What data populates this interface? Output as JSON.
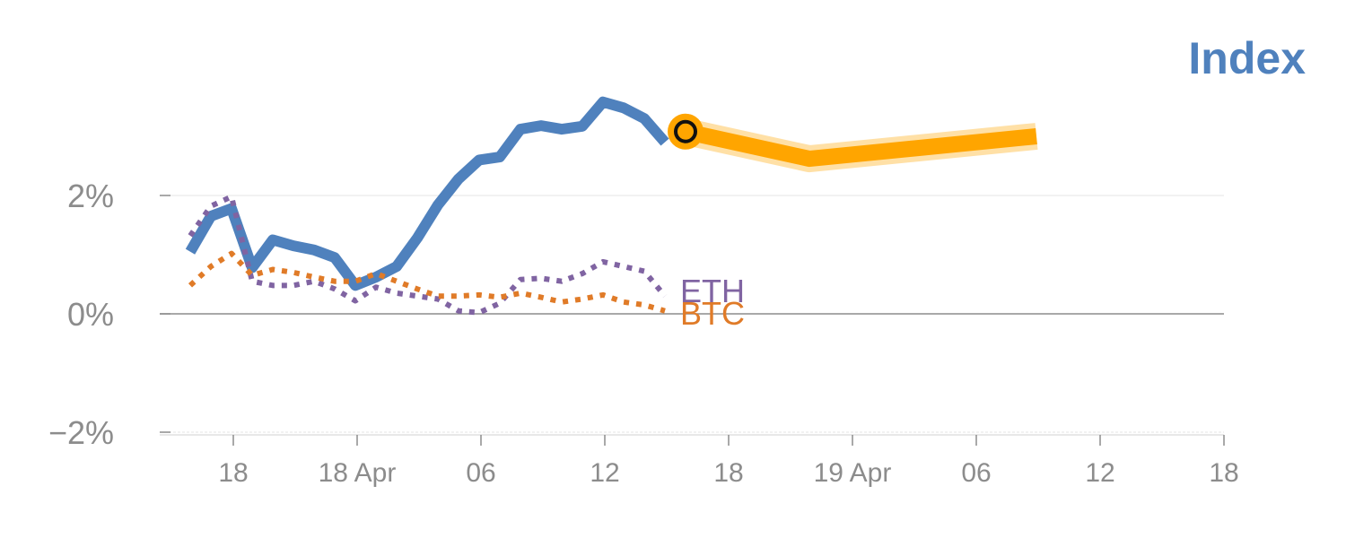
{
  "chart_data": {
    "type": "line",
    "title": "Index",
    "xlabel": "",
    "ylabel": "",
    "ylim": [
      -2,
      3.5
    ],
    "grid": "horizontal",
    "legend": "inline labels at line ends",
    "x_ticks": [
      "18",
      "18 Apr",
      "06",
      "12",
      "18",
      "19 Apr",
      "06",
      "12",
      "18"
    ],
    "y_ticks": [
      {
        "value": 2,
        "label": "2%"
      },
      {
        "value": 0,
        "label": "0%"
      },
      {
        "value": -2,
        "label": "−2%"
      }
    ],
    "x_step_hours": 1,
    "series": [
      {
        "name": "",
        "style": "solid",
        "color": "#4f81bd",
        "values": [
          1.05,
          1.65,
          1.78,
          0.78,
          1.25,
          1.15,
          1.08,
          0.95,
          0.48,
          0.62,
          0.8,
          1.28,
          1.84,
          2.28,
          2.6,
          2.65,
          3.12,
          3.18,
          3.12,
          3.17,
          3.58,
          3.48,
          3.3,
          2.9
        ]
      },
      {
        "name": "ETH",
        "style": "dotted",
        "color": "#8064a2",
        "values": [
          1.32,
          1.82,
          1.98,
          0.55,
          0.48,
          0.48,
          0.55,
          0.42,
          0.22,
          0.45,
          0.35,
          0.3,
          0.25,
          0.05,
          0.02,
          0.18,
          0.58,
          0.6,
          0.55,
          0.68,
          0.88,
          0.8,
          0.72,
          0.3
        ]
      },
      {
        "name": "BTC",
        "style": "dotted",
        "color": "#e07b28",
        "values": [
          0.48,
          0.8,
          1.02,
          0.65,
          0.75,
          0.7,
          0.62,
          0.55,
          0.55,
          0.68,
          0.55,
          0.42,
          0.3,
          0.3,
          0.32,
          0.28,
          0.35,
          0.28,
          0.2,
          0.25,
          0.32,
          0.2,
          0.15,
          0.05
        ]
      },
      {
        "name": "",
        "style": "highlight",
        "color": "#ffa500",
        "x_index": [
          24,
          30,
          41
        ],
        "values": [
          3.08,
          2.62,
          3.0
        ]
      }
    ],
    "marker": {
      "x_index": 24,
      "value": 3.08,
      "color": "#ffa500"
    }
  }
}
